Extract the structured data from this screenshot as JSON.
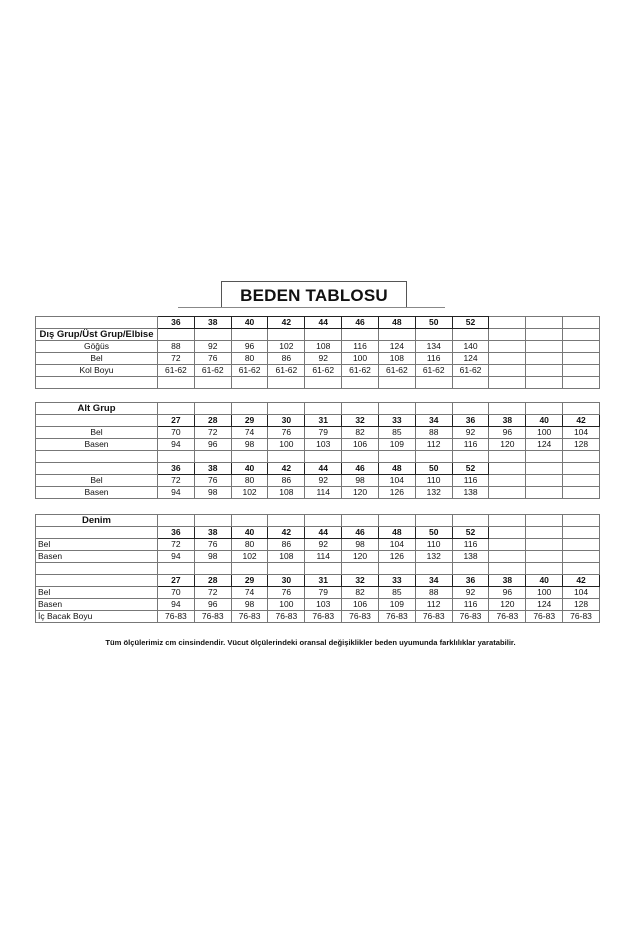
{
  "title": "BEDEN TABLOSU",
  "sections": [
    {
      "rows": [
        {
          "type": "header",
          "label": "",
          "values": [
            "36",
            "38",
            "40",
            "42",
            "44",
            "46",
            "48",
            "50",
            "52",
            "",
            "",
            ""
          ],
          "bold_count": 9
        },
        {
          "type": "group",
          "label": "Dış Grup/Üst Grup/Elbise",
          "align": "center",
          "values": [
            "",
            "",
            "",
            "",
            "",
            "",
            "",
            "",
            "",
            "",
            "",
            ""
          ]
        },
        {
          "type": "data",
          "label": "Göğüs",
          "align": "center",
          "values": [
            "88",
            "92",
            "96",
            "102",
            "108",
            "116",
            "124",
            "134",
            "140",
            "",
            "",
            ""
          ]
        },
        {
          "type": "data",
          "label": "Bel",
          "align": "center",
          "values": [
            "72",
            "76",
            "80",
            "86",
            "92",
            "100",
            "108",
            "116",
            "124",
            "",
            "",
            ""
          ]
        },
        {
          "type": "data",
          "label": "Kol Boyu",
          "align": "center",
          "values": [
            "61-62",
            "61-62",
            "61-62",
            "61-62",
            "61-62",
            "61-62",
            "61-62",
            "61-62",
            "61-62",
            "",
            "",
            ""
          ]
        },
        {
          "type": "data",
          "label": "",
          "align": "center",
          "values": [
            "",
            "",
            "",
            "",
            "",
            "",
            "",
            "",
            "",
            "",
            "",
            ""
          ]
        }
      ]
    },
    {
      "rows": [
        {
          "type": "group",
          "label": "Alt Grup",
          "align": "center",
          "values": [
            "",
            "",
            "",
            "",
            "",
            "",
            "",
            "",
            "",
            "",
            "",
            ""
          ]
        },
        {
          "type": "header",
          "label": "",
          "values": [
            "27",
            "28",
            "29",
            "30",
            "31",
            "32",
            "33",
            "34",
            "36",
            "38",
            "40",
            "42"
          ],
          "bold_count": 12
        },
        {
          "type": "data",
          "label": "Bel",
          "align": "center",
          "values": [
            "70",
            "72",
            "74",
            "76",
            "79",
            "82",
            "85",
            "88",
            "92",
            "96",
            "100",
            "104"
          ]
        },
        {
          "type": "data",
          "label": "Basen",
          "align": "center",
          "values": [
            "94",
            "96",
            "98",
            "100",
            "103",
            "106",
            "109",
            "112",
            "116",
            "120",
            "124",
            "128"
          ]
        },
        {
          "type": "data",
          "label": "",
          "align": "center",
          "values": [
            "",
            "",
            "",
            "",
            "",
            "",
            "",
            "",
            "",
            "",
            "",
            ""
          ]
        },
        {
          "type": "header",
          "label": "",
          "values": [
            "36",
            "38",
            "40",
            "42",
            "44",
            "46",
            "48",
            "50",
            "52",
            "",
            "",
            ""
          ],
          "bold_count": 9
        },
        {
          "type": "data",
          "label": "Bel",
          "align": "center",
          "values": [
            "72",
            "76",
            "80",
            "86",
            "92",
            "98",
            "104",
            "110",
            "116",
            "",
            "",
            ""
          ]
        },
        {
          "type": "data",
          "label": "Basen",
          "align": "center",
          "values": [
            "94",
            "98",
            "102",
            "108",
            "114",
            "120",
            "126",
            "132",
            "138",
            "",
            "",
            ""
          ]
        }
      ]
    },
    {
      "rows": [
        {
          "type": "group",
          "label": "Denim",
          "align": "center",
          "values": [
            "",
            "",
            "",
            "",
            "",
            "",
            "",
            "",
            "",
            "",
            "",
            ""
          ]
        },
        {
          "type": "header",
          "label": "",
          "values": [
            "36",
            "38",
            "40",
            "42",
            "44",
            "46",
            "48",
            "50",
            "52",
            "",
            "",
            ""
          ],
          "bold_count": 9
        },
        {
          "type": "data",
          "label": "Bel",
          "align": "left",
          "values": [
            "72",
            "76",
            "80",
            "86",
            "92",
            "98",
            "104",
            "110",
            "116",
            "",
            "",
            ""
          ]
        },
        {
          "type": "data",
          "label": "Basen",
          "align": "left",
          "values": [
            "94",
            "98",
            "102",
            "108",
            "114",
            "120",
            "126",
            "132",
            "138",
            "",
            "",
            ""
          ]
        },
        {
          "type": "data",
          "label": "",
          "align": "left",
          "values": [
            "",
            "",
            "",
            "",
            "",
            "",
            "",
            "",
            "",
            "",
            "",
            ""
          ]
        },
        {
          "type": "header",
          "label": "",
          "values": [
            "27",
            "28",
            "29",
            "30",
            "31",
            "32",
            "33",
            "34",
            "36",
            "38",
            "40",
            "42"
          ],
          "bold_count": 12
        },
        {
          "type": "data",
          "label": "Bel",
          "align": "left",
          "values": [
            "70",
            "72",
            "74",
            "76",
            "79",
            "82",
            "85",
            "88",
            "92",
            "96",
            "100",
            "104"
          ]
        },
        {
          "type": "data",
          "label": "Basen",
          "align": "left",
          "values": [
            "94",
            "96",
            "98",
            "100",
            "103",
            "106",
            "109",
            "112",
            "116",
            "120",
            "124",
            "128"
          ]
        },
        {
          "type": "data",
          "label": "İç Bacak Boyu",
          "align": "left",
          "values": [
            "76-83",
            "76-83",
            "76-83",
            "76-83",
            "76-83",
            "76-83",
            "76-83",
            "76-83",
            "76-83",
            "76-83",
            "76-83",
            "76-83"
          ]
        }
      ]
    }
  ],
  "footnote": "Tüm ölçülerimiz cm cinsindendir. Vücut ölçülerindeki oransal değişiklikler beden uyumunda farklılıklar yaratabilir."
}
